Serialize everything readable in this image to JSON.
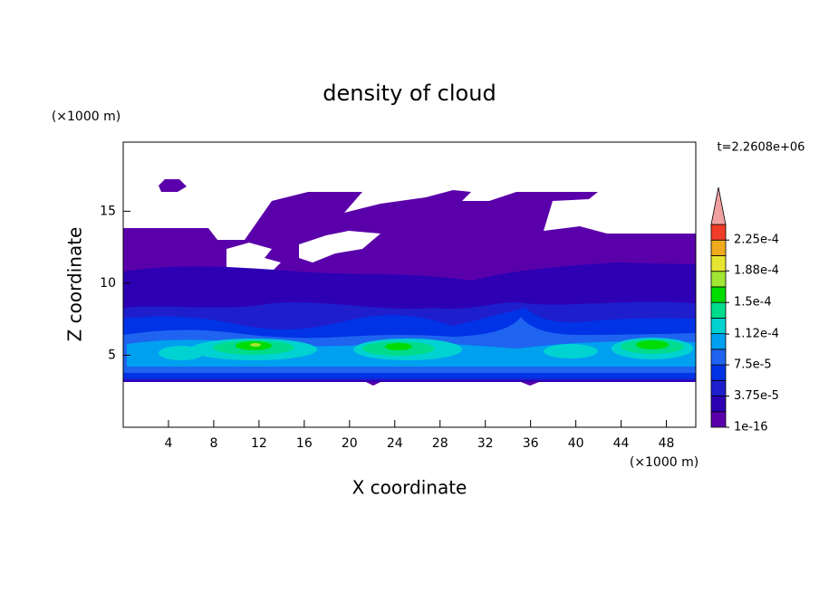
{
  "chart_data": {
    "type": "contour",
    "title": "density of cloud",
    "xlabel": "X coordinate",
    "ylabel": "Z coordinate",
    "x_unit": "(×1000 m)",
    "y_unit": "(×1000 m)",
    "annotation": "t=2.2608e+06",
    "xlim": [
      0,
      50.6
    ],
    "ylim": [
      0,
      19.8
    ],
    "xticks": [
      4,
      8,
      12,
      16,
      20,
      24,
      28,
      32,
      36,
      40,
      44,
      48
    ],
    "yticks": [
      5,
      10,
      15
    ],
    "colorbar": {
      "levels": [
        1e-16,
        1.875e-05,
        3.75e-05,
        5.625e-05,
        7.5e-05,
        9.375e-05,
        0.0001125,
        0.00013125,
        0.00015,
        0.00016875,
        0.0001875,
        0.00020625,
        0.000225,
        0.00024375
      ],
      "colors": [
        "#5a00aa",
        "#2d00b4",
        "#1e1ecd",
        "#0032e6",
        "#1e64f0",
        "#00a0f0",
        "#00d2d2",
        "#00dc8c",
        "#00dc00",
        "#a0e632",
        "#e6e632",
        "#f0aa1e",
        "#f03c28"
      ],
      "extend_color": "#f0a0a0",
      "ticks": [
        {
          "value": 1e-16,
          "label": "1e-16"
        },
        {
          "value": 3.75e-05,
          "label": "3.75e-5"
        },
        {
          "value": 7.5e-05,
          "label": "7.5e-5"
        },
        {
          "value": 0.000112,
          "label": "1.12e-4"
        },
        {
          "value": 0.00015,
          "label": "1.5e-4"
        },
        {
          "value": 0.000188,
          "label": "1.88e-4"
        },
        {
          "value": 0.000225,
          "label": "2.25e-4"
        }
      ]
    }
  }
}
